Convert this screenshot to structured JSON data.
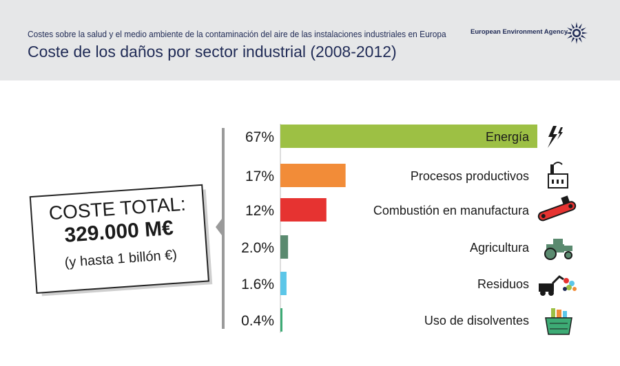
{
  "header": {
    "subtitle": "Costes sobre la salud y el medio ambiente de la contaminación del aire de las instalaciones industriales en Europa",
    "title": "Coste de los daños por sector industrial (2008-2012)",
    "agency": "European Environment Agency"
  },
  "total": {
    "label": "COSTE TOTAL:",
    "value": "329.000 M€",
    "note": "(y hasta 1 billón €)"
  },
  "chart_data": {
    "type": "bar",
    "orientation": "horizontal",
    "unit": "%",
    "categories": [
      "Energía",
      "Procesos productivos",
      "Combustión en manufactura",
      "Agricultura",
      "Residuos",
      "Uso de disolventes"
    ],
    "values": [
      67,
      17,
      12,
      2.0,
      1.6,
      0.4
    ],
    "value_labels": [
      "67%",
      "17%",
      "12%",
      "2.0%",
      "1.6%",
      "0.4%"
    ],
    "colors": [
      "#9dc044",
      "#f28c38",
      "#e63331",
      "#5a8a6f",
      "#5cc6e8",
      "#3dab75"
    ],
    "icons": [
      "lightning-icon",
      "factory-icon",
      "conveyor-icon",
      "tractor-icon",
      "waste-loader-icon",
      "solvent-basket-icon"
    ],
    "xlim": [
      0,
      67
    ],
    "grid": false,
    "legend": "none"
  }
}
